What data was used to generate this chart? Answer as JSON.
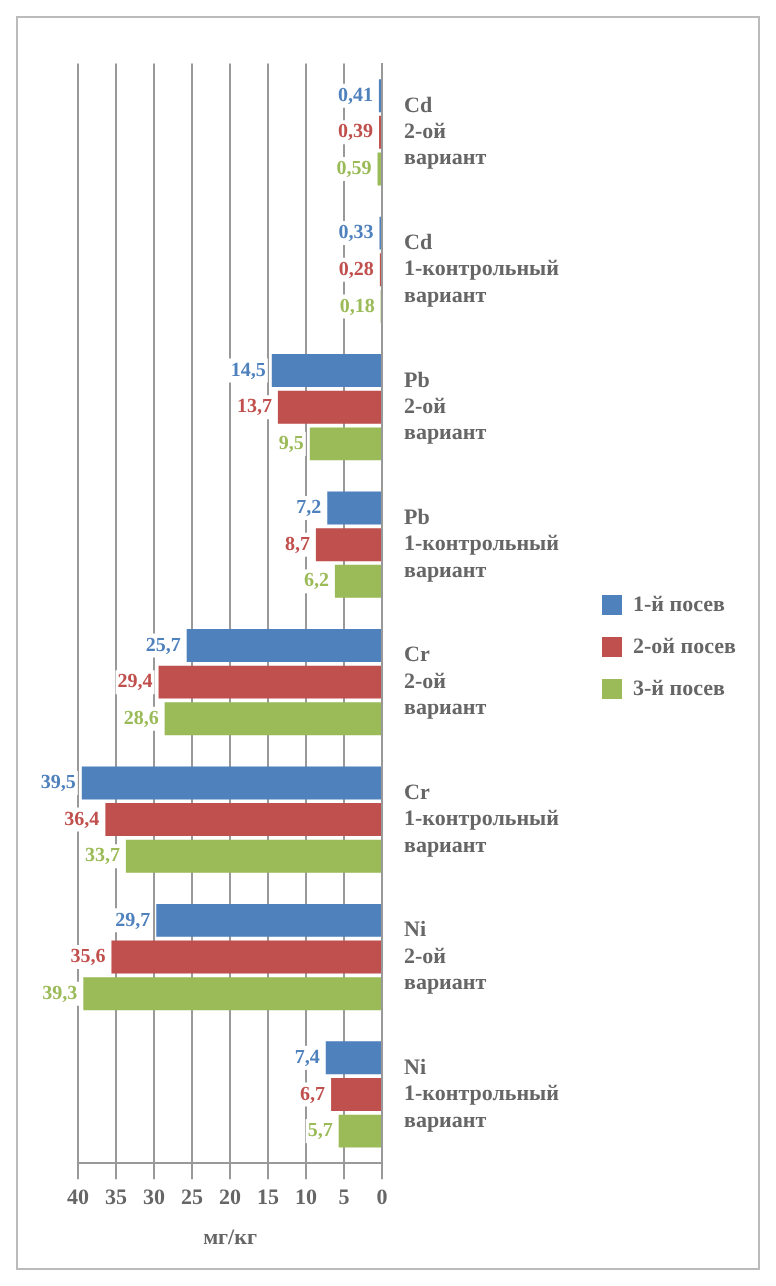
{
  "chart_data": {
    "type": "bar",
    "orientation": "horizontal",
    "xlabel": "мг/кг",
    "categories": [
      "Cd 2-ой вариант",
      "Cd 1-контрольный вариант",
      "Pb 2-ой вариант",
      "Pb 1-контрольный вариант",
      "Cr 2-ой вариант",
      "Cr 1-контрольный вариант",
      "Ni 2-ой вариант",
      "Ni 1-контрольный вариант"
    ],
    "series": [
      {
        "name": "1-й посев",
        "color": "#4f81bd",
        "values": [
          0.41,
          0.33,
          14.5,
          7.2,
          25.7,
          39.5,
          29.7,
          7.4
        ],
        "value_labels": [
          "0,41",
          "0,33",
          "14,5",
          "7,2",
          "25,7",
          "39,5",
          "29,7",
          "7,4"
        ]
      },
      {
        "name": "2-ой посев",
        "color": "#c0504d",
        "values": [
          0.39,
          0.28,
          13.7,
          8.7,
          29.4,
          36.4,
          35.6,
          6.7
        ],
        "value_labels": [
          "0,39",
          "0,28",
          "13,7",
          "8,7",
          "29,4",
          "36,4",
          "35,6",
          "6,7"
        ]
      },
      {
        "name": "3-й посев",
        "color": "#9bbb59",
        "values": [
          0.59,
          0.18,
          9.5,
          6.2,
          28.6,
          33.7,
          39.3,
          5.7
        ],
        "value_labels": [
          "0,59",
          "0,18",
          "9,5",
          "6,2",
          "28,6",
          "33,7",
          "39,3",
          "5,7"
        ]
      }
    ],
    "xlim": [
      40,
      0
    ],
    "xticks": [
      0,
      5,
      10,
      15,
      20,
      25,
      30,
      35,
      40
    ],
    "grid": "x",
    "legend": "right"
  }
}
